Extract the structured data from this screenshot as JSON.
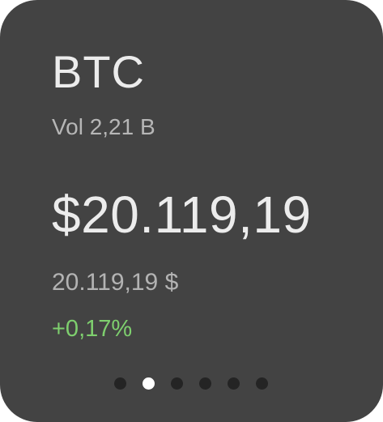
{
  "ticker": {
    "symbol": "BTC",
    "volume": "Vol 2,21 B",
    "price_main": "$20.119,19",
    "price_secondary": "20.119,19 $",
    "change": "+0,17%"
  },
  "pagination": {
    "total": 6,
    "active_index": 1,
    "colors": {
      "active": "#ffffff",
      "inactive": "#242424"
    }
  },
  "colors": {
    "card_background": "#434343",
    "primary_text": "#ececec",
    "secondary_text": "#b6b6b6",
    "positive_change": "#7ecf6e"
  }
}
